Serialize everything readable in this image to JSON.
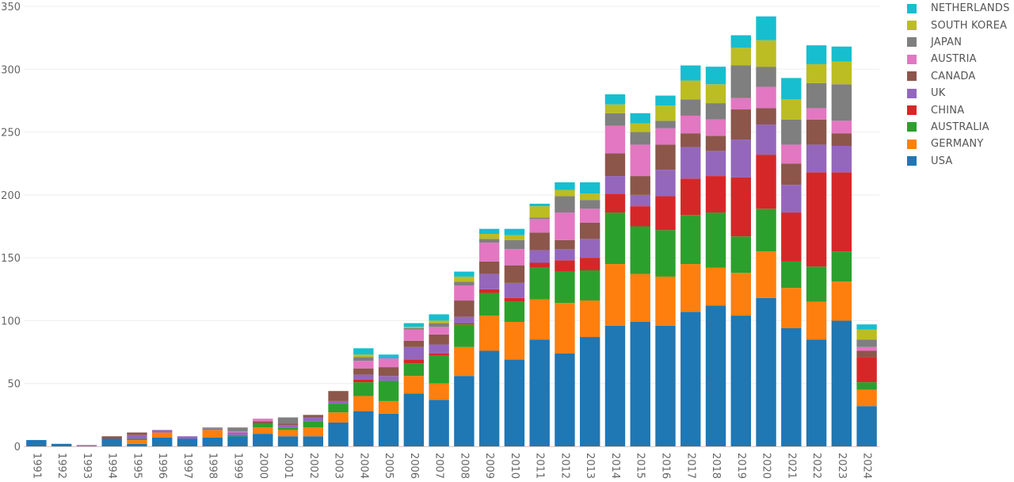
{
  "chart_data": {
    "type": "bar",
    "stacked": true,
    "title": "",
    "xlabel": "",
    "ylabel": "",
    "ylim": [
      0,
      350
    ],
    "yticks": [
      0,
      50,
      100,
      150,
      200,
      250,
      300,
      350
    ],
    "grid": true,
    "legend_position": "top-right",
    "categories": [
      "1991",
      "1992",
      "1993",
      "1994",
      "1995",
      "1996",
      "1997",
      "1998",
      "1999",
      "2000",
      "2001",
      "2002",
      "2003",
      "2004",
      "2005",
      "2006",
      "2007",
      "2008",
      "2009",
      "2010",
      "2011",
      "2012",
      "2013",
      "2014",
      "2015",
      "2016",
      "2017",
      "2018",
      "2019",
      "2020",
      "2021",
      "2022",
      "2023",
      "2024"
    ],
    "series": [
      {
        "name": "USA",
        "color": "#1f77b4",
        "values": [
          5,
          2,
          0,
          6,
          2,
          7,
          6,
          7,
          8,
          10,
          8,
          8,
          19,
          28,
          26,
          42,
          37,
          56,
          76,
          69,
          85,
          74,
          87,
          96,
          99,
          96,
          107,
          112,
          104,
          118,
          94,
          85,
          100,
          32
        ]
      },
      {
        "name": "GERMANY",
        "color": "#ff7f0e",
        "values": [
          0,
          0,
          0,
          0,
          3,
          4,
          0,
          6,
          0,
          5,
          5,
          7,
          8,
          12,
          10,
          14,
          13,
          23,
          28,
          30,
          32,
          40,
          29,
          49,
          38,
          39,
          38,
          30,
          34,
          37,
          32,
          30,
          31,
          13
        ]
      },
      {
        "name": "AUSTRALIA",
        "color": "#2ca02c",
        "values": [
          0,
          0,
          0,
          0,
          1,
          0,
          0,
          0,
          1,
          3,
          2,
          5,
          7,
          11,
          16,
          10,
          22,
          18,
          18,
          16,
          25,
          25,
          24,
          41,
          38,
          37,
          39,
          44,
          29,
          34,
          21,
          28,
          24,
          6
        ]
      },
      {
        "name": "CHINA",
        "color": "#d62728",
        "values": [
          0,
          0,
          0,
          0,
          0,
          0,
          0,
          0,
          0,
          0,
          0,
          0,
          0,
          2,
          0,
          3,
          2,
          1,
          3,
          3,
          4,
          9,
          10,
          15,
          16,
          27,
          29,
          29,
          47,
          43,
          39,
          75,
          63,
          20
        ]
      },
      {
        "name": "UK",
        "color": "#9467bd",
        "values": [
          0,
          0,
          1,
          0,
          3,
          2,
          2,
          1,
          2,
          0,
          2,
          3,
          2,
          4,
          4,
          10,
          7,
          5,
          12,
          12,
          10,
          9,
          15,
          14,
          9,
          21,
          25,
          20,
          30,
          24,
          22,
          22,
          21,
          0
        ]
      },
      {
        "name": "CANADA",
        "color": "#8c564b",
        "values": [
          0,
          0,
          0,
          2,
          2,
          0,
          0,
          0,
          0,
          2,
          1,
          2,
          8,
          5,
          7,
          5,
          8,
          13,
          10,
          14,
          14,
          7,
          13,
          18,
          15,
          20,
          11,
          12,
          24,
          13,
          17,
          20,
          10,
          5
        ]
      },
      {
        "name": "AUSTRIA",
        "color": "#e377c2",
        "values": [
          0,
          0,
          0,
          0,
          0,
          0,
          0,
          0,
          1,
          2,
          0,
          0,
          0,
          6,
          7,
          9,
          6,
          12,
          15,
          13,
          11,
          22,
          11,
          22,
          25,
          13,
          14,
          13,
          9,
          17,
          15,
          9,
          10,
          3
        ]
      },
      {
        "name": "JAPAN",
        "color": "#7f7f7f",
        "values": [
          0,
          0,
          0,
          0,
          0,
          0,
          0,
          1,
          3,
          0,
          5,
          0,
          0,
          3,
          0,
          1,
          3,
          3,
          3,
          7,
          1,
          13,
          7,
          10,
          10,
          6,
          13,
          13,
          26,
          16,
          20,
          20,
          29,
          6
        ]
      },
      {
        "name": "SOUTH KOREA",
        "color": "#bcbd22",
        "values": [
          0,
          0,
          0,
          0,
          0,
          0,
          0,
          0,
          0,
          0,
          0,
          0,
          0,
          2,
          0,
          1,
          2,
          4,
          4,
          4,
          9,
          5,
          5,
          7,
          7,
          12,
          15,
          15,
          14,
          21,
          16,
          15,
          18,
          8
        ]
      },
      {
        "name": "NETHERLANDS",
        "color": "#17becf",
        "values": [
          0,
          0,
          0,
          0,
          0,
          0,
          0,
          0,
          0,
          0,
          0,
          0,
          0,
          5,
          3,
          3,
          5,
          4,
          4,
          5,
          2,
          6,
          9,
          8,
          8,
          8,
          12,
          14,
          10,
          19,
          17,
          15,
          12,
          4
        ]
      }
    ]
  },
  "legend": {
    "items": [
      {
        "label": "NETHERLANDS",
        "color": "#17becf"
      },
      {
        "label": "SOUTH KOREA",
        "color": "#bcbd22"
      },
      {
        "label": "JAPAN",
        "color": "#7f7f7f"
      },
      {
        "label": "AUSTRIA",
        "color": "#e377c2"
      },
      {
        "label": "CANADA",
        "color": "#8c564b"
      },
      {
        "label": "UK",
        "color": "#9467bd"
      },
      {
        "label": "CHINA",
        "color": "#d62728"
      },
      {
        "label": "AUSTRALIA",
        "color": "#2ca02c"
      },
      {
        "label": "GERMANY",
        "color": "#ff7f0e"
      },
      {
        "label": "USA",
        "color": "#1f77b4"
      }
    ]
  }
}
